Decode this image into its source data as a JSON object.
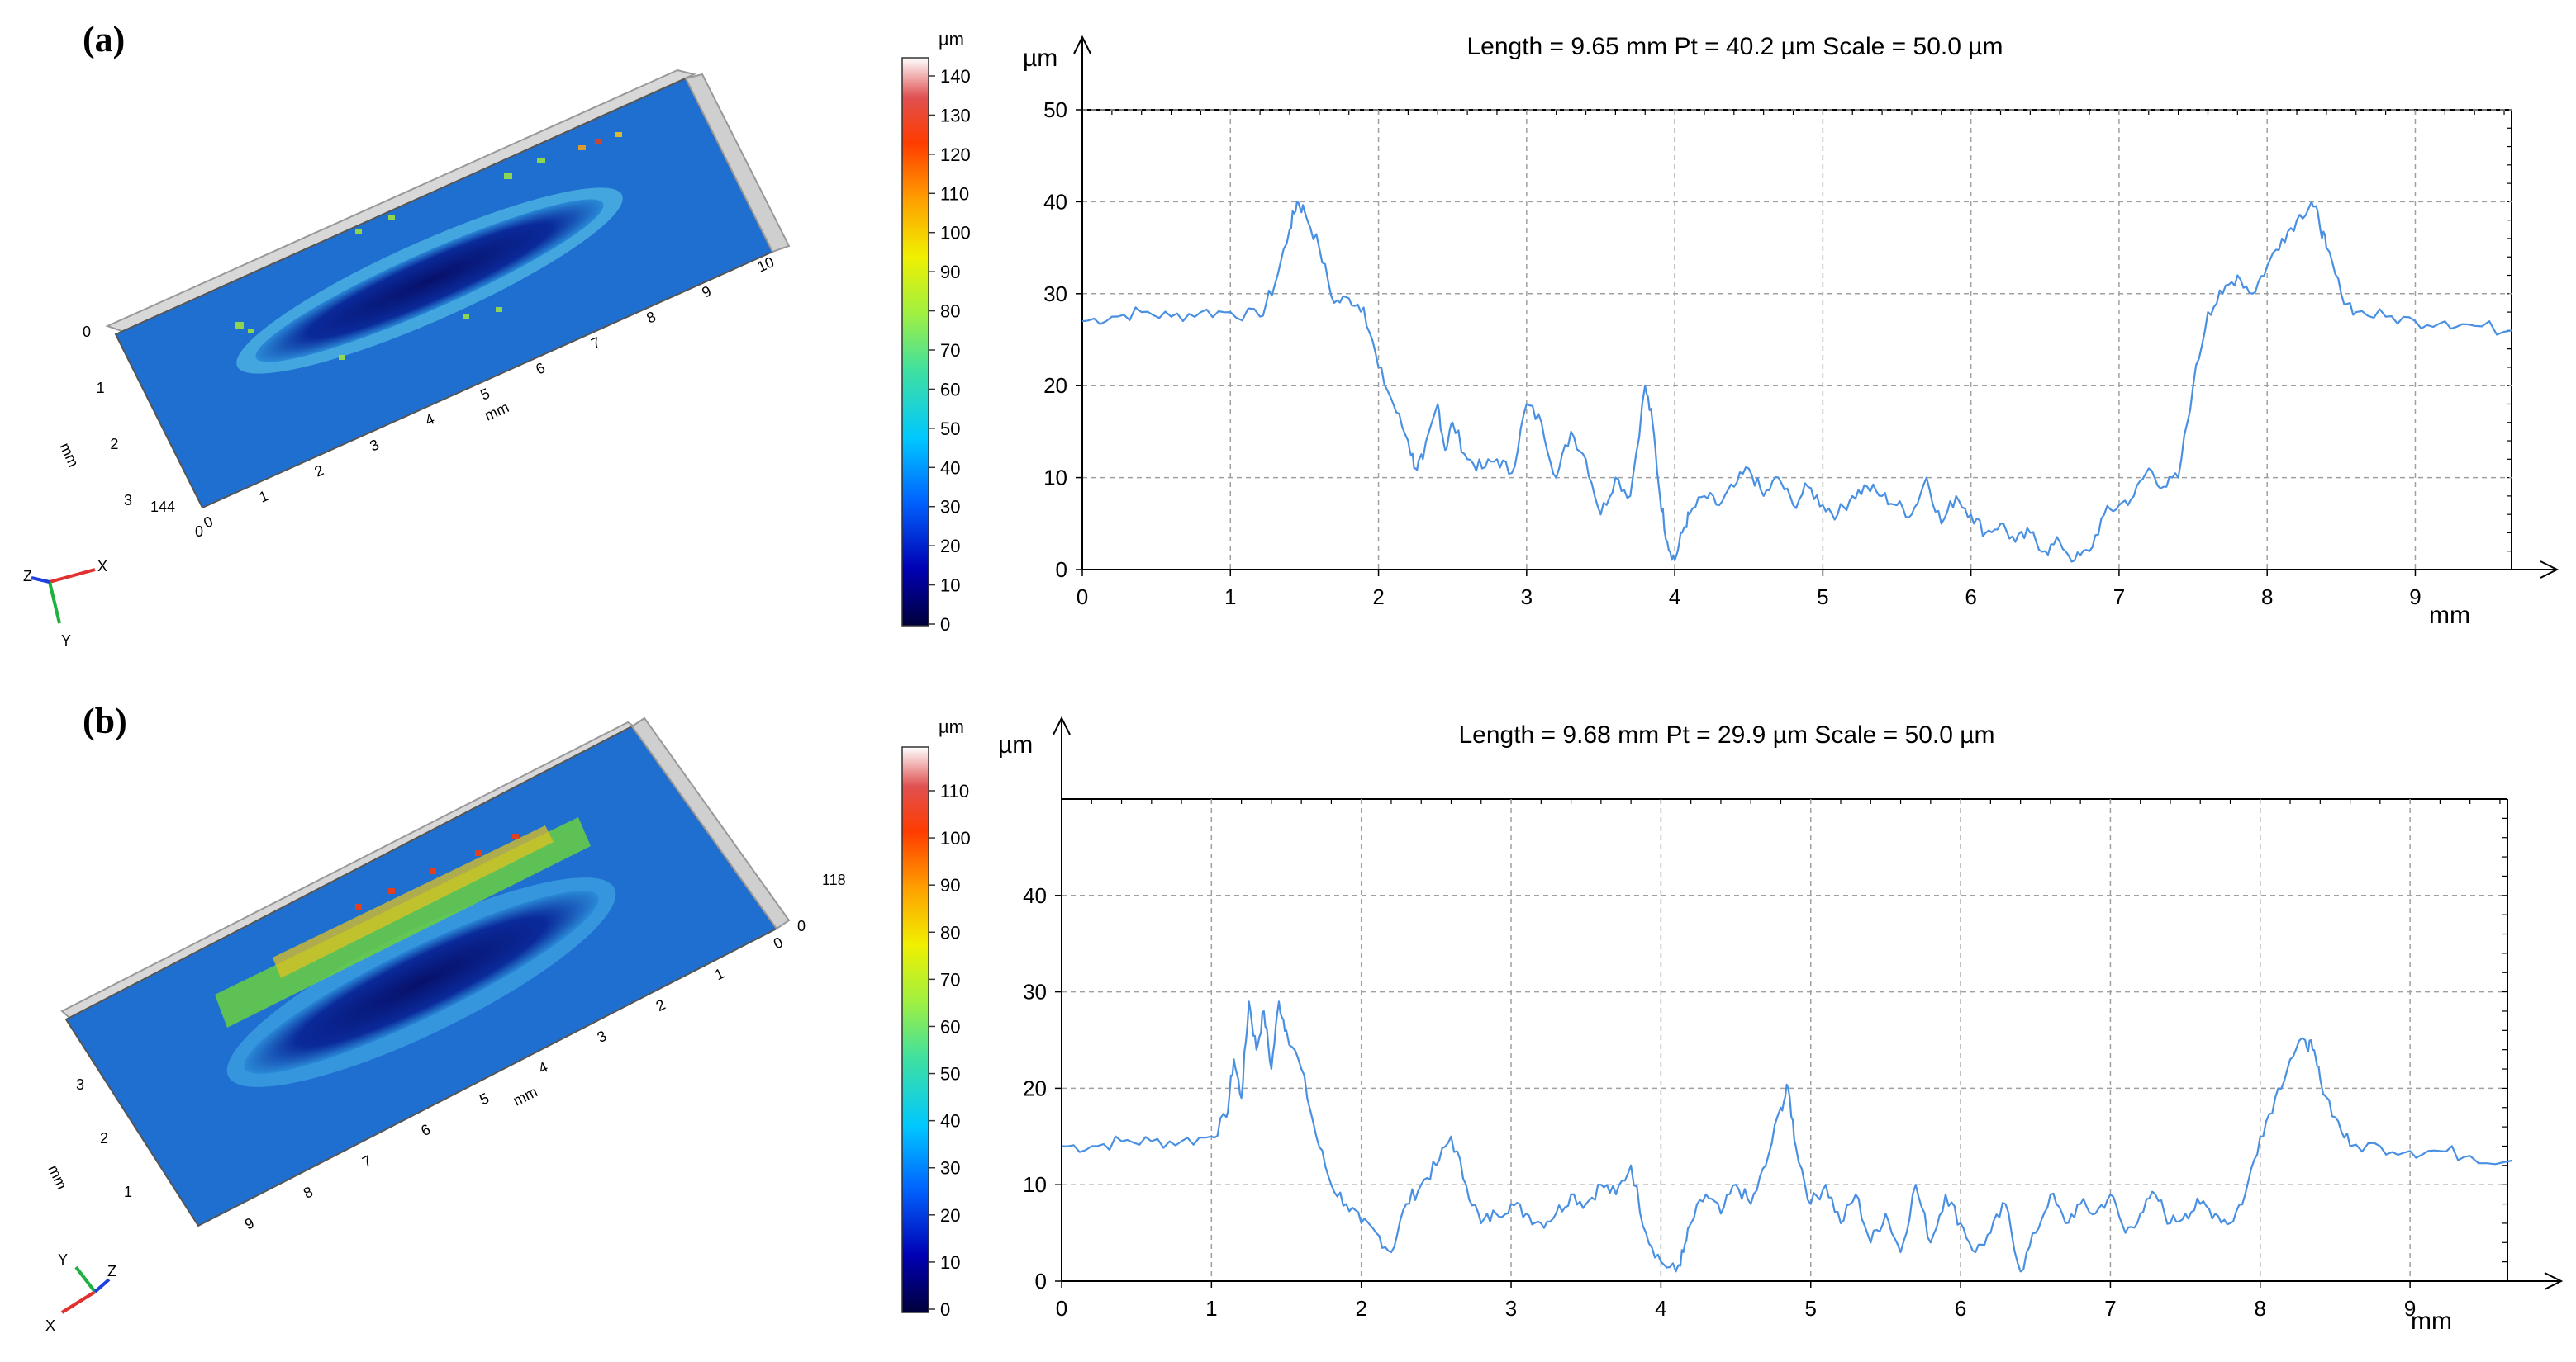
{
  "panels": [
    {
      "tag": "(a)",
      "map": {
        "colorbar_unit": "µm",
        "colorbar_ticks": [
          "140",
          "130",
          "120",
          "110",
          "100",
          "90",
          "80",
          "70",
          "60",
          "50",
          "40",
          "30",
          "20",
          "10",
          "0"
        ],
        "x_axis_unit": "mm",
        "x_axis_ticks": [
          "0",
          "1",
          "2",
          "3",
          "4",
          "5",
          "6",
          "7",
          "8",
          "9",
          "10"
        ],
        "y_axis_unit": "mm",
        "y_axis_ticks": [
          "0",
          "1",
          "2",
          "3"
        ],
        "z_max_label": "144",
        "z_min_label": "0",
        "triad": {
          "axis1": "Z",
          "axis2": "X",
          "axis3": "Y"
        }
      },
      "profile": {
        "title": "Length = 9.65 mm  Pt = 40.2 µm  Scale = 50.0 µm",
        "y_unit": "µm",
        "x_unit": "mm",
        "y_ticks": [
          "50",
          "40",
          "30",
          "20",
          "10",
          "0"
        ],
        "x_ticks": [
          "0",
          "1",
          "2",
          "3",
          "4",
          "5",
          "6",
          "7",
          "8",
          "9"
        ]
      }
    },
    {
      "tag": "(b)",
      "map": {
        "colorbar_unit": "µm",
        "colorbar_ticks": [
          "110",
          "100",
          "90",
          "80",
          "70",
          "60",
          "50",
          "40",
          "30",
          "20",
          "10",
          "0"
        ],
        "x_axis_unit": "mm",
        "x_axis_ticks": [
          "9",
          "8",
          "7",
          "6",
          "5",
          "4",
          "3",
          "2",
          "1",
          "0"
        ],
        "y_axis_unit": "mm",
        "y_axis_ticks": [
          "3",
          "2",
          "1"
        ],
        "z_max_label": "118",
        "z_min_label": "0",
        "triad": {
          "axis1": "Y",
          "axis2": "Z",
          "axis3": "X"
        }
      },
      "profile": {
        "title": "Length = 9.68 mm  Pt = 29.9 µm  Scale = 50.0 µm",
        "y_unit": "µm",
        "x_unit": "mm",
        "y_ticks": [
          "40",
          "30",
          "20",
          "10",
          "0"
        ],
        "x_ticks": [
          "0",
          "1",
          "2",
          "3",
          "4",
          "5",
          "6",
          "7",
          "8",
          "9"
        ]
      }
    }
  ],
  "colors": {
    "profile_line": "#4a90e2",
    "grid": "#a0a0a0",
    "surface_base": "#1f6fd1",
    "groove": "#0a1f8a"
  },
  "chart_data": [
    {
      "type": "line",
      "title": "Length = 9.65 mm  Pt = 40.2 µm  Scale = 50.0 µm",
      "xlabel": "mm",
      "ylabel": "µm",
      "xlim": [
        0,
        9.65
      ],
      "ylim": [
        0,
        50
      ],
      "grid": true,
      "x": [
        0.0,
        0.2,
        0.4,
        0.6,
        0.8,
        1.0,
        1.2,
        1.3,
        1.4,
        1.45,
        1.5,
        1.6,
        1.7,
        1.8,
        1.9,
        2.0,
        2.1,
        2.2,
        2.25,
        2.3,
        2.4,
        2.45,
        2.5,
        2.6,
        2.7,
        2.8,
        2.9,
        3.0,
        3.1,
        3.2,
        3.3,
        3.4,
        3.5,
        3.6,
        3.7,
        3.8,
        3.85,
        3.9,
        3.95,
        4.0,
        4.05,
        4.1,
        4.2,
        4.3,
        4.4,
        4.5,
        4.6,
        4.7,
        4.8,
        4.9,
        5.0,
        5.1,
        5.2,
        5.3,
        5.4,
        5.5,
        5.6,
        5.7,
        5.8,
        5.9,
        6.0,
        6.1,
        6.2,
        6.3,
        6.4,
        6.5,
        6.6,
        6.7,
        6.8,
        6.9,
        7.0,
        7.1,
        7.2,
        7.3,
        7.4,
        7.5,
        7.6,
        7.7,
        7.8,
        7.9,
        8.0,
        8.1,
        8.2,
        8.3,
        8.35,
        8.4,
        8.5,
        8.6,
        8.8,
        9.0,
        9.2,
        9.4,
        9.65
      ],
      "values": [
        27,
        27.5,
        28,
        27.5,
        28,
        28,
        27.5,
        31,
        37,
        40,
        39,
        35,
        29,
        29.5,
        28.5,
        22,
        18,
        14,
        11,
        12,
        18,
        13,
        16,
        12,
        11,
        12,
        10.5,
        18,
        16,
        10,
        15,
        12,
        6,
        10,
        8,
        20,
        16,
        8,
        3,
        1,
        4,
        6,
        8,
        7,
        9,
        11,
        8,
        10,
        7,
        9,
        7,
        6,
        8,
        9,
        8,
        7,
        6,
        10,
        5,
        8,
        6,
        4,
        5,
        3,
        4,
        2,
        3,
        1,
        2,
        6,
        7,
        8,
        11,
        9,
        10,
        20,
        28,
        30,
        32,
        30,
        33,
        36,
        38,
        40,
        38,
        35,
        30,
        28,
        27.5,
        27,
        27,
        26.5,
        26
      ]
    },
    {
      "type": "line",
      "title": "Length = 9.68 mm  Pt = 29.9 µm  Scale = 50.0 µm",
      "xlabel": "mm",
      "ylabel": "µm",
      "xlim": [
        0,
        9.68
      ],
      "ylim": [
        0,
        50
      ],
      "grid": true,
      "x": [
        0.0,
        0.2,
        0.4,
        0.6,
        0.8,
        1.0,
        1.1,
        1.15,
        1.2,
        1.25,
        1.3,
        1.35,
        1.4,
        1.45,
        1.5,
        1.6,
        1.7,
        1.8,
        1.9,
        2.0,
        2.1,
        2.2,
        2.3,
        2.4,
        2.5,
        2.6,
        2.7,
        2.8,
        2.9,
        3.0,
        3.1,
        3.2,
        3.3,
        3.4,
        3.5,
        3.6,
        3.7,
        3.8,
        3.9,
        4.0,
        4.1,
        4.15,
        4.2,
        4.3,
        4.4,
        4.5,
        4.6,
        4.7,
        4.8,
        4.85,
        4.9,
        5.0,
        5.1,
        5.2,
        5.3,
        5.4,
        5.5,
        5.6,
        5.7,
        5.8,
        5.9,
        6.0,
        6.1,
        6.2,
        6.3,
        6.4,
        6.5,
        6.6,
        6.7,
        6.8,
        6.9,
        7.0,
        7.1,
        7.2,
        7.3,
        7.4,
        7.5,
        7.6,
        7.7,
        7.8,
        7.9,
        8.0,
        8.1,
        8.2,
        8.3,
        8.35,
        8.4,
        8.5,
        8.6,
        8.8,
        9.0,
        9.2,
        9.4,
        9.68
      ],
      "values": [
        14,
        14,
        14.5,
        14.5,
        14.5,
        15,
        17,
        23,
        19,
        29,
        24,
        28,
        22,
        29,
        26,
        22,
        15,
        10,
        8,
        6,
        5,
        3,
        8,
        10,
        12,
        15,
        10,
        6,
        7,
        8,
        7,
        6,
        7,
        9,
        8,
        10,
        9,
        12,
        5,
        2,
        1,
        3,
        6,
        9,
        7,
        10,
        8,
        12,
        18,
        20,
        14,
        8,
        10,
        6,
        9,
        4,
        7,
        3,
        10,
        4,
        9,
        6,
        3,
        5,
        8,
        1,
        5,
        9,
        6,
        8,
        7,
        9,
        5,
        7,
        9,
        6,
        7,
        8,
        7,
        6,
        9,
        15,
        19,
        23,
        25,
        24,
        21,
        17,
        14,
        14,
        13.5,
        13.5,
        13,
        12.5
      ]
    }
  ]
}
